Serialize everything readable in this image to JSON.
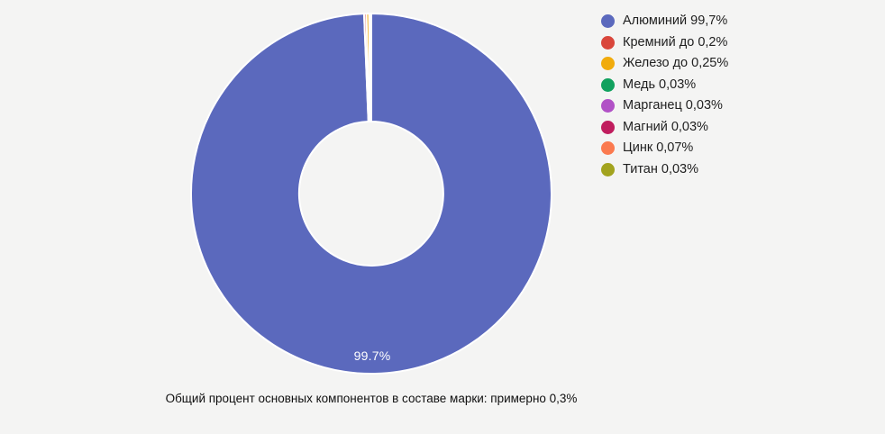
{
  "page": {
    "background": "#f4f4f3"
  },
  "chart_data": {
    "type": "pie",
    "subtype": "donut",
    "title": "",
    "categories": [
      "Алюминий",
      "Кремний",
      "Железо",
      "Медь",
      "Марганец",
      "Магний",
      "Цинк",
      "Титан"
    ],
    "values": [
      99.7,
      0.2,
      0.25,
      0.03,
      0.03,
      0.03,
      0.07,
      0.03
    ],
    "unit": "%",
    "colors": [
      "#5b69bd",
      "#d9463b",
      "#f1ab0c",
      "#11a15e",
      "#b151c6",
      "#c01d5e",
      "#fb7a4f",
      "#a2a31e"
    ],
    "legend_labels": [
      "Алюминий 99,7%",
      "Кремний до 0,2%",
      "Железо до 0,25%",
      "Медь 0,03%",
      "Марганец 0,03%",
      "Магний 0,03%",
      "Цинк 0,07%",
      "Титан 0,03%"
    ],
    "legend_position": "right",
    "slice_label": "99.7%",
    "slice_label_color": "#ffffff",
    "start_angle_deg": -90,
    "direction": "clockwise",
    "inner_radius_ratio": 0.4,
    "border_color": "#ffffff",
    "border_width": 2,
    "caption": "Общий процент основных компонентов в составе марки: примерно 0,3%"
  }
}
